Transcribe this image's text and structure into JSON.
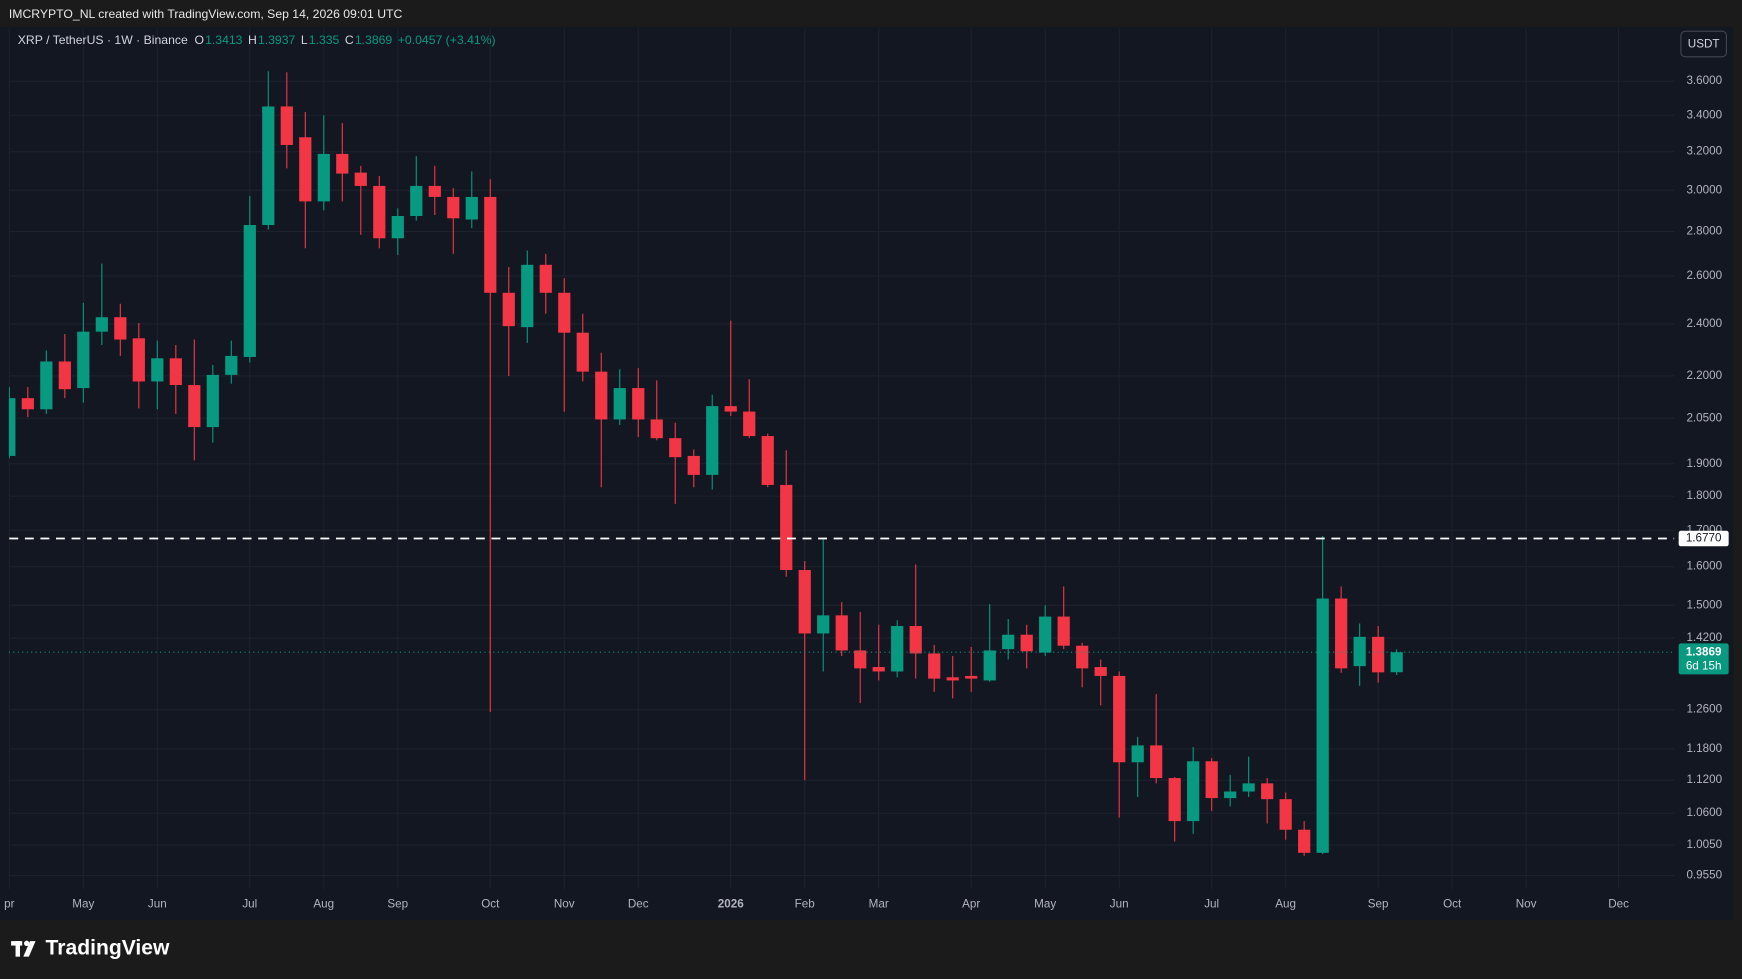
{
  "chart_data": {
    "type": "candlestick",
    "header": "IMCRYPTO_NL created with TradingView.com, Sep 14, 2026 09:01 UTC",
    "symbol": "XRP / TetherUS · 1W · Binance",
    "ohlc_letters": [
      "O",
      "H",
      "L",
      "C"
    ],
    "change_label": "+0.0457 (+3.41%)",
    "currency": "USDT",
    "countdown": "6d 15h",
    "brand": "TradingView",
    "log_scale": true,
    "grid": true,
    "colors": {
      "up": "#089981",
      "down": "#f23645"
    },
    "ylim": [
      0.934,
      3.935
    ],
    "yticks": [
      {
        "value": 3.6,
        "label": "3.6000"
      },
      {
        "value": 3.4,
        "label": "3.4000"
      },
      {
        "value": 3.2,
        "label": "3.2000"
      },
      {
        "value": 3.0,
        "label": "3.0000"
      },
      {
        "value": 2.8,
        "label": "2.8000"
      },
      {
        "value": 2.6,
        "label": "2.6000"
      },
      {
        "value": 2.4,
        "label": "2.4000"
      },
      {
        "value": 2.2,
        "label": "2.2000"
      },
      {
        "value": 2.05,
        "label": "2.0500"
      },
      {
        "value": 1.9,
        "label": "1.9000"
      },
      {
        "value": 1.8,
        "label": "1.8000"
      },
      {
        "value": 1.7,
        "label": "1.7000"
      },
      {
        "value": 1.6,
        "label": "1.6000"
      },
      {
        "value": 1.5,
        "label": "1.5000"
      },
      {
        "value": 1.42,
        "label": "1.4200"
      },
      {
        "value": 1.26,
        "label": "1.2600"
      },
      {
        "value": 1.18,
        "label": "1.1800"
      },
      {
        "value": 1.12,
        "label": "1.1200"
      },
      {
        "value": 1.06,
        "label": "1.0600"
      },
      {
        "value": 1.005,
        "label": "1.0050"
      },
      {
        "value": 0.955,
        "label": "0.9550"
      }
    ],
    "hline": {
      "value": 1.677,
      "label": "1.6770"
    },
    "categories": [
      "pr",
      null,
      null,
      null,
      "May",
      null,
      null,
      null,
      "Jun",
      null,
      null,
      null,
      null,
      "Jul",
      null,
      null,
      null,
      "Aug",
      null,
      null,
      null,
      "Sep",
      null,
      null,
      null,
      null,
      "Oct",
      null,
      null,
      null,
      "Nov",
      null,
      null,
      null,
      "Dec",
      null,
      null,
      null,
      null,
      "2026",
      null,
      null,
      null,
      "Feb",
      null,
      null,
      null,
      "Mar",
      null,
      null,
      null,
      null,
      "Apr",
      null,
      null,
      null,
      "May",
      null,
      null,
      null,
      "Jun",
      null,
      null,
      null,
      null,
      "Jul",
      null,
      null,
      null,
      "Aug",
      null,
      null,
      null,
      null,
      "Sep",
      null,
      null,
      null,
      "Oct",
      null,
      null,
      null,
      "Nov",
      null,
      null,
      null,
      null,
      "Dec",
      null,
      null
    ],
    "open": [
      1.925,
      2.12,
      2.081,
      2.254,
      2.156,
      2.369,
      2.427,
      2.343,
      2.18,
      2.266,
      2.167,
      2.02,
      2.204,
      2.271,
      2.831,
      3.451,
      3.278,
      2.945,
      3.188,
      3.09,
      3.022,
      2.769,
      2.874,
      3.022,
      2.967,
      2.857,
      2.967,
      2.528,
      2.387,
      2.649,
      2.528,
      2.365,
      2.216,
      2.046,
      2.156,
      2.046,
      1.983,
      1.925,
      1.865,
      2.092,
      2.073,
      1.99,
      1.834,
      1.591,
      1.431,
      1.475,
      1.391,
      1.353,
      1.343,
      1.449,
      1.384,
      1.33,
      1.333,
      1.323,
      1.394,
      1.428,
      1.386,
      1.472,
      1.402,
      1.353,
      1.333,
      1.154,
      1.187,
      1.124,
      1.046,
      1.156,
      1.087,
      1.099,
      1.114,
      1.085,
      1.031,
      0.992,
      1.517,
      1.355,
      1.423,
      1.3413,
      null,
      null,
      null,
      null,
      null,
      null,
      null,
      null,
      null,
      null,
      null,
      null,
      null,
      null
    ],
    "high": [
      2.16,
      2.16,
      2.296,
      2.36,
      2.486,
      2.654,
      2.482,
      2.404,
      2.334,
      2.317,
      2.338,
      2.241,
      2.334,
      2.972,
      3.66,
      3.654,
      3.419,
      3.4,
      3.356,
      3.125,
      3.073,
      2.911,
      3.176,
      3.125,
      3.011,
      3.096,
      3.056,
      2.639,
      2.713,
      2.698,
      2.59,
      2.441,
      2.287,
      2.225,
      2.229,
      2.184,
      2.035,
      1.946,
      2.132,
      2.413,
      2.188,
      1.998,
      1.943,
      1.615,
      1.677,
      1.508,
      1.483,
      1.452,
      1.463,
      1.606,
      1.404,
      1.378,
      1.399,
      1.503,
      1.466,
      1.452,
      1.5,
      1.548,
      1.409,
      1.37,
      1.343,
      1.204,
      1.293,
      1.126,
      1.184,
      1.162,
      1.13,
      1.165,
      1.124,
      1.097,
      1.046,
      1.684,
      1.548,
      1.455,
      1.449,
      1.3937,
      null,
      null,
      null,
      null,
      null,
      null,
      null,
      null,
      null,
      null,
      null,
      null,
      null,
      null
    ],
    "low": [
      1.918,
      2.054,
      2.065,
      2.12,
      2.104,
      2.317,
      2.275,
      2.084,
      2.081,
      2.065,
      1.911,
      1.968,
      2.172,
      2.25,
      2.81,
      3.112,
      2.723,
      2.901,
      2.945,
      2.785,
      2.723,
      2.693,
      2.852,
      2.879,
      2.698,
      2.816,
      1.255,
      2.2,
      2.325,
      2.441,
      2.073,
      2.18,
      1.827,
      2.027,
      1.987,
      1.976,
      1.777,
      1.827,
      1.82,
      2.058,
      1.983,
      1.827,
      1.573,
      1.12,
      1.343,
      1.378,
      1.274,
      1.323,
      1.33,
      1.327,
      1.298,
      1.284,
      1.298,
      1.32,
      1.37,
      1.35,
      1.378,
      1.394,
      1.308,
      1.269,
      1.052,
      1.089,
      1.114,
      1.011,
      1.024,
      1.064,
      1.072,
      1.089,
      1.042,
      1.014,
      0.987,
      0.99,
      1.34,
      1.311,
      1.318,
      1.335,
      null,
      null,
      null,
      null,
      null,
      null,
      null,
      null,
      null,
      null,
      null,
      null,
      null,
      null
    ],
    "close": [
      2.12,
      2.081,
      2.254,
      2.152,
      2.369,
      2.427,
      2.338,
      2.18,
      2.266,
      2.167,
      2.02,
      2.204,
      2.275,
      2.831,
      3.451,
      3.236,
      2.945,
      3.188,
      3.085,
      3.022,
      2.769,
      2.874,
      3.022,
      2.967,
      2.863,
      2.967,
      2.528,
      2.391,
      2.649,
      2.528,
      2.365,
      2.216,
      2.046,
      2.156,
      2.046,
      1.983,
      1.921,
      1.865,
      2.092,
      2.073,
      1.99,
      1.834,
      1.591,
      1.431,
      1.475,
      1.391,
      1.35,
      1.343,
      1.449,
      1.384,
      1.327,
      1.323,
      1.327,
      1.391,
      1.428,
      1.389,
      1.472,
      1.402,
      1.35,
      1.333,
      1.154,
      1.187,
      1.124,
      1.046,
      1.156,
      1.087,
      1.099,
      1.114,
      1.085,
      1.031,
      0.992,
      1.517,
      1.35,
      1.423,
      1.341,
      1.3869,
      null,
      null,
      null,
      null,
      null,
      null,
      null,
      null,
      null,
      null,
      null,
      null,
      null,
      null
    ]
  }
}
